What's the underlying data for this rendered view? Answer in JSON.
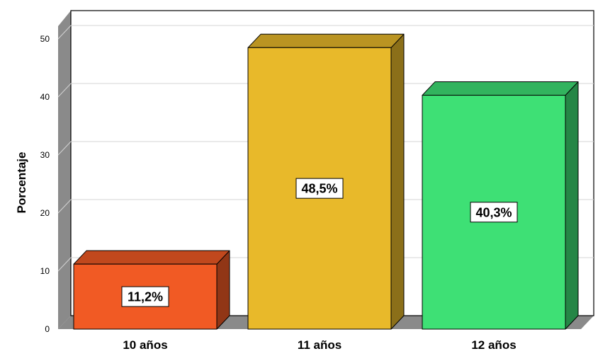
{
  "chart_data": {
    "type": "bar",
    "style": "3d",
    "categories": [
      "10 años",
      "11 años",
      "12 años"
    ],
    "values": [
      11.2,
      48.5,
      40.3
    ],
    "data_labels": [
      "11,2%",
      "48,5%",
      "40,3%"
    ],
    "colors": [
      "#f15a24",
      "#e8b92a",
      "#3ee075"
    ],
    "ylabel": "Porcentaje",
    "ylim": [
      0,
      50
    ],
    "yticks": [
      "0",
      "10",
      "20",
      "30",
      "40",
      "50"
    ],
    "grid": true
  }
}
